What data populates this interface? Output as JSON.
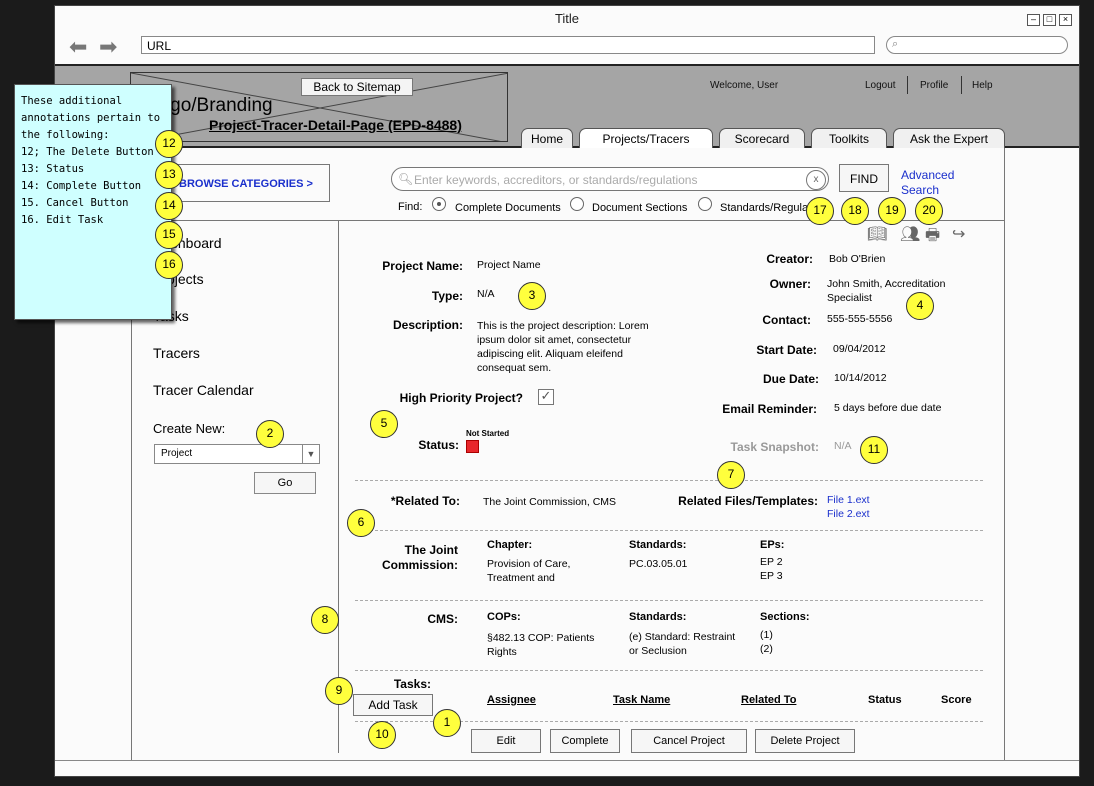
{
  "window": {
    "title": "Title",
    "url": "URL",
    "controls": [
      "minimize",
      "maximize",
      "close"
    ]
  },
  "header": {
    "back_to_sitemap": "Back to Sitemap",
    "logo_text": "Logo/Branding",
    "page_id": "Project-Tracer-Detail-Page (EPD-8488)",
    "welcome": "Welcome, User",
    "links": [
      "Logout",
      "Profile",
      "Help"
    ],
    "tabs": [
      {
        "label": "Home"
      },
      {
        "label": "Projects/Tracers",
        "active": true
      },
      {
        "label": "Scorecard"
      },
      {
        "label": "Toolkits"
      },
      {
        "label": "Ask the Expert"
      }
    ]
  },
  "search": {
    "browse_categories": "BROWSE CATEGORIES >",
    "placeholder": "Enter keywords, accreditors, or standards/regulations",
    "clear": "x",
    "find_button": "FIND",
    "advanced_search": "Advanced Search",
    "find_label": "Find:",
    "find_options": [
      {
        "label": "Complete Documents",
        "selected": true
      },
      {
        "label": "Document Sections",
        "selected": false
      },
      {
        "label": "Standards/Regulations",
        "selected": false
      }
    ]
  },
  "sidebar": {
    "items": [
      "Dashboard",
      "Projects",
      "Tasks",
      "Tracers",
      "Tracer Calendar"
    ],
    "create_new_label": "Create New:",
    "create_new_value": "Project",
    "go_button": "Go"
  },
  "toolbar_icons": [
    "book-icon",
    "users-icon",
    "print-icon",
    "share-icon"
  ],
  "project": {
    "name_label": "Project Name:",
    "name": "Project Name",
    "type_label": "Type:",
    "type": "N/A",
    "description_label": "Description:",
    "description_lines": [
      "This is the project description: Lorem",
      "ipsum dolor sit amet, consectetur",
      "adipiscing elit. Aliquam eleifend",
      "consequat sem."
    ],
    "high_priority_label": "High Priority Project?",
    "high_priority_checked": true,
    "status_label": "Status:",
    "status_value": "Not Started",
    "status_color": "#e8272b",
    "creator_label": "Creator:",
    "creator": "Bob O'Brien",
    "owner_label": "Owner:",
    "owner_lines": [
      "John Smith, Accreditation",
      "Specialist"
    ],
    "contact_label": "Contact:",
    "contact": "555-555-5556",
    "start_date_label": "Start Date:",
    "start_date": "09/04/2012",
    "due_date_label": "Due Date:",
    "due_date": "10/14/2012",
    "email_reminder_label": "Email Reminder:",
    "email_reminder": "5 days before due date",
    "task_snapshot_label": "Task Snapshot:",
    "task_snapshot": "N/A",
    "related_to_label": "*Related To:",
    "related_to": "The Joint Commission, CMS",
    "related_files_label": "Related Files/Templates:",
    "related_files": [
      "File 1.ext",
      "File 2.ext"
    ]
  },
  "joint_commission": {
    "label_lines": [
      "The Joint",
      "Commission:"
    ],
    "chapter_header": "Chapter:",
    "chapter_lines": [
      "Provision of Care,",
      "Treatment and"
    ],
    "standards_header": "Standards:",
    "standards": "PC.03.05.01",
    "eps_header": "EPs:",
    "eps": [
      "EP 2",
      "EP 3"
    ]
  },
  "cms": {
    "label": "CMS:",
    "cops_header": "COPs:",
    "cops_lines": [
      "§482.13 COP: Patients",
      "Rights"
    ],
    "standards_header": "Standards:",
    "standards_lines": [
      "(e) Standard: Restraint",
      "or Seclusion"
    ],
    "sections_header": "Sections:",
    "sections": [
      "(1)",
      "(2)"
    ]
  },
  "tasks": {
    "label": "Tasks:",
    "add_button": "Add Task",
    "columns": [
      "Assignee",
      "Task Name",
      "Related To",
      "Status",
      "Score"
    ]
  },
  "actions": [
    "Edit",
    "Complete",
    "Cancel Project",
    "Delete Project"
  ],
  "callouts": [
    "1",
    "2",
    "3",
    "4",
    "5",
    "6",
    "7",
    "8",
    "9",
    "10",
    "11",
    "12",
    "13",
    "14",
    "15",
    "16",
    "17",
    "18",
    "19",
    "20"
  ],
  "note": {
    "lines": [
      "These additional",
      "annotations pertain to",
      "the following:",
      "12; The Delete Button",
      "13: Status",
      "14: Complete Button",
      "15. Cancel Button",
      "16. Edit Task"
    ]
  }
}
